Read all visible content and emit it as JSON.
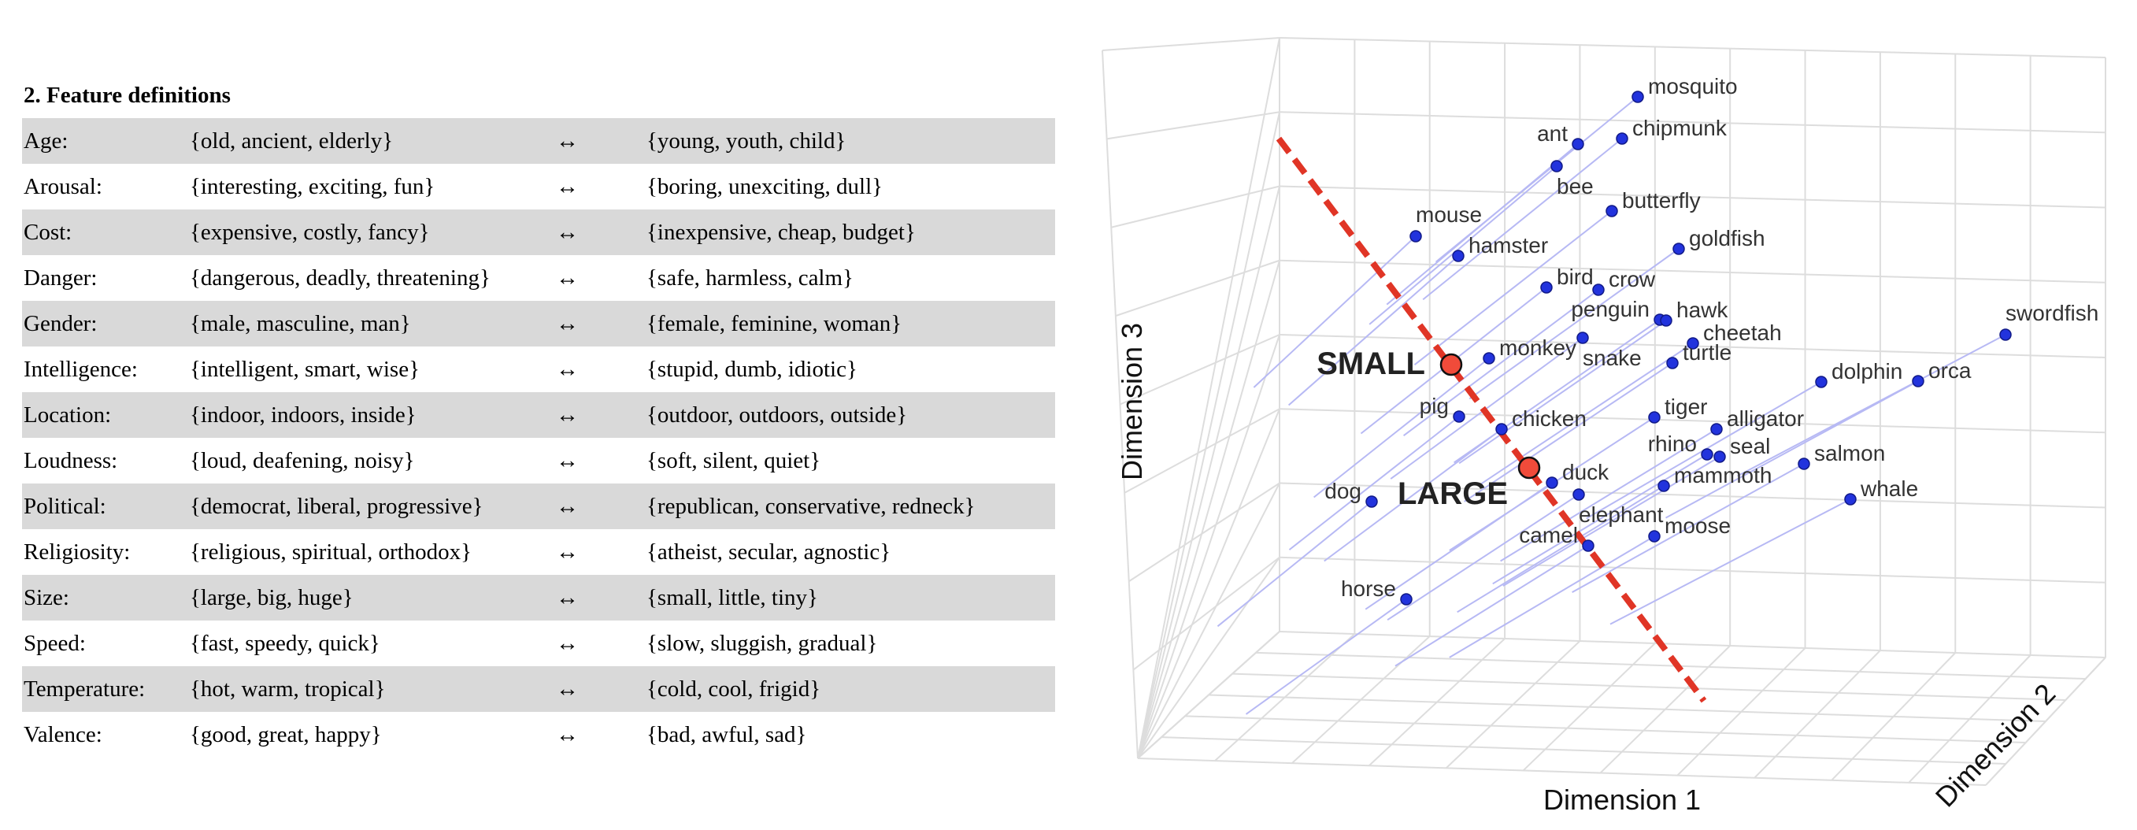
{
  "table": {
    "title": "2. Feature definitions",
    "arrow": "↔",
    "rows": [
      {
        "name": "Age:",
        "pos": "{old, ancient, elderly}",
        "neg": "{young, youth, child}"
      },
      {
        "name": "Arousal:",
        "pos": "{interesting, exciting, fun}",
        "neg": "{boring, unexciting, dull}"
      },
      {
        "name": "Cost:",
        "pos": "{expensive, costly, fancy}",
        "neg": "{inexpensive, cheap, budget}"
      },
      {
        "name": "Danger:",
        "pos": "{dangerous, deadly, threatening}",
        "neg": "{safe, harmless, calm}"
      },
      {
        "name": "Gender:",
        "pos": "{male, masculine, man}",
        "neg": "{female, feminine, woman}"
      },
      {
        "name": "Intelligence:",
        "pos": "{intelligent, smart, wise}",
        "neg": "{stupid, dumb, idiotic}"
      },
      {
        "name": "Location:",
        "pos": "{indoor, indoors, inside}",
        "neg": "{outdoor, outdoors, outside}"
      },
      {
        "name": "Loudness:",
        "pos": "{loud, deafening, noisy}",
        "neg": "{soft, silent, quiet}"
      },
      {
        "name": "Political:",
        "pos": "{democrat, liberal, progressive}",
        "neg": "{republican, conservative, redneck}"
      },
      {
        "name": "Religiosity:",
        "pos": "{religious, spiritual, orthodox}",
        "neg": "{atheist, secular, agnostic}"
      },
      {
        "name": "Size:",
        "pos": "{large, big, huge}",
        "neg": "{small, little, tiny}"
      },
      {
        "name": "Speed:",
        "pos": "{fast, speedy, quick}",
        "neg": "{slow, sluggish, gradual}"
      },
      {
        "name": "Temperature:",
        "pos": "{hot, warm, tropical}",
        "neg": "{cold, cool, frigid}"
      },
      {
        "name": "Valence:",
        "pos": "{good, great, happy}",
        "neg": "{bad, awful, sad}"
      }
    ]
  },
  "plot": {
    "axis_labels": {
      "dim1": "Dimension 1",
      "dim2": "Dimension 2",
      "dim3": "Dimension 3"
    },
    "anchors": {
      "small": "SMALL",
      "large": "LARGE"
    },
    "colors": {
      "point": "#2233dd",
      "projection": "#b7b9f4",
      "axis_line": "#e03526",
      "anchor_fill": "#f04b3a",
      "grid": "#dddddd"
    },
    "points": [
      {
        "label": "mosquito"
      },
      {
        "label": "ant"
      },
      {
        "label": "chipmunk"
      },
      {
        "label": "bee"
      },
      {
        "label": "butterfly"
      },
      {
        "label": "mouse"
      },
      {
        "label": "hamster"
      },
      {
        "label": "goldfish"
      },
      {
        "label": "bird"
      },
      {
        "label": "crow"
      },
      {
        "label": "penguin"
      },
      {
        "label": "hawk"
      },
      {
        "label": "swordfish"
      },
      {
        "label": "monkey"
      },
      {
        "label": "snake"
      },
      {
        "label": "cheetah"
      },
      {
        "label": "turtle"
      },
      {
        "label": "dolphin"
      },
      {
        "label": "orca"
      },
      {
        "label": "pig"
      },
      {
        "label": "chicken"
      },
      {
        "label": "tiger"
      },
      {
        "label": "alligator"
      },
      {
        "label": "rhino"
      },
      {
        "label": "seal"
      },
      {
        "label": "salmon"
      },
      {
        "label": "duck"
      },
      {
        "label": "mammoth"
      },
      {
        "label": "whale"
      },
      {
        "label": "dog"
      },
      {
        "label": "elephant"
      },
      {
        "label": "moose"
      },
      {
        "label": "camel"
      },
      {
        "label": "horse"
      }
    ]
  }
}
